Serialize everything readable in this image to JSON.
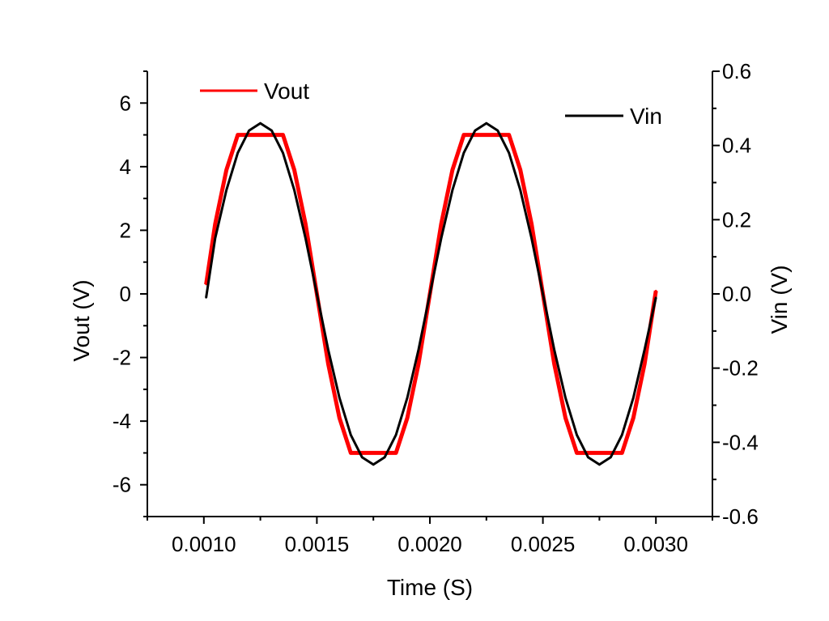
{
  "chart_data": {
    "type": "line",
    "xlabel": "Time (S)",
    "ylabel": "Vout (V)",
    "y2label": "Vin (V)",
    "xlim": [
      0.00075,
      0.00325
    ],
    "ylim": [
      -7,
      7
    ],
    "y2lim": [
      -0.6,
      0.6
    ],
    "x_ticks": [
      "0.0010",
      "0.0015",
      "0.0020",
      "0.0025",
      "0.0030"
    ],
    "x_tick_values": [
      0.001,
      0.0015,
      0.002,
      0.0025,
      0.003
    ],
    "y_ticks": [
      "-6",
      "-4",
      "-2",
      "0",
      "2",
      "4",
      "6"
    ],
    "y_tick_values": [
      -6,
      -4,
      -2,
      0,
      2,
      4,
      6
    ],
    "y2_ticks": [
      "-0.6",
      "-0.4",
      "-0.2",
      "0.0",
      "0.2",
      "0.4",
      "0.6"
    ],
    "y2_tick_values": [
      -0.6,
      -0.4,
      -0.2,
      0.0,
      0.2,
      0.4,
      0.6
    ],
    "grid": false,
    "series": [
      {
        "name": "Vout",
        "axis": "left",
        "color": "#ff0000",
        "x": [
          0.00101,
          0.00105,
          0.0011,
          0.00115,
          0.0012,
          0.00125,
          0.0013,
          0.00135,
          0.0014,
          0.00145,
          0.0015,
          0.00155,
          0.0016,
          0.00165,
          0.0017,
          0.00175,
          0.0018,
          0.00185,
          0.0019,
          0.00195,
          0.002,
          0.00205,
          0.0021,
          0.00215,
          0.0022,
          0.00225,
          0.0023,
          0.00235,
          0.0024,
          0.00245,
          0.0025,
          0.00255,
          0.0026,
          0.00265,
          0.0027,
          0.00275,
          0.0028,
          0.00285,
          0.0029,
          0.00295,
          0.003
        ],
        "values": [
          0.3,
          2.2,
          3.9,
          5.0,
          5.0,
          5.0,
          5.0,
          5.0,
          3.9,
          2.2,
          0.0,
          -2.2,
          -3.9,
          -5.0,
          -5.0,
          -5.0,
          -5.0,
          -5.0,
          -3.9,
          -2.2,
          0.0,
          2.2,
          3.9,
          5.0,
          5.0,
          5.0,
          5.0,
          5.0,
          3.9,
          2.2,
          0.0,
          -2.2,
          -3.9,
          -5.0,
          -5.0,
          -5.0,
          -5.0,
          -5.0,
          -3.9,
          -2.2,
          0.1
        ]
      },
      {
        "name": "Vin",
        "axis": "right",
        "color": "#000000",
        "x": [
          0.00101,
          0.00105,
          0.0011,
          0.00115,
          0.0012,
          0.00125,
          0.0013,
          0.00135,
          0.0014,
          0.00145,
          0.0015,
          0.00155,
          0.0016,
          0.00165,
          0.0017,
          0.00175,
          0.0018,
          0.00185,
          0.0019,
          0.00195,
          0.002,
          0.00205,
          0.0021,
          0.00215,
          0.0022,
          0.00225,
          0.0023,
          0.00235,
          0.0024,
          0.00245,
          0.0025,
          0.00255,
          0.0026,
          0.00265,
          0.0027,
          0.00275,
          0.0028,
          0.00285,
          0.0029,
          0.00295,
          0.003
        ],
        "values": [
          -0.01,
          0.15,
          0.28,
          0.38,
          0.44,
          0.46,
          0.44,
          0.38,
          0.28,
          0.15,
          0.0,
          -0.15,
          -0.28,
          -0.38,
          -0.44,
          -0.46,
          -0.44,
          -0.38,
          -0.28,
          -0.15,
          0.0,
          0.15,
          0.28,
          0.38,
          0.44,
          0.46,
          0.44,
          0.38,
          0.28,
          0.15,
          0.0,
          -0.15,
          -0.28,
          -0.38,
          -0.44,
          -0.46,
          -0.44,
          -0.38,
          -0.28,
          -0.15,
          -0.01
        ]
      }
    ],
    "legend": [
      {
        "label": "Vout",
        "color": "#ff0000",
        "placement": "top-left"
      },
      {
        "label": "Vin",
        "color": "#000000",
        "placement": "top-right"
      }
    ]
  }
}
